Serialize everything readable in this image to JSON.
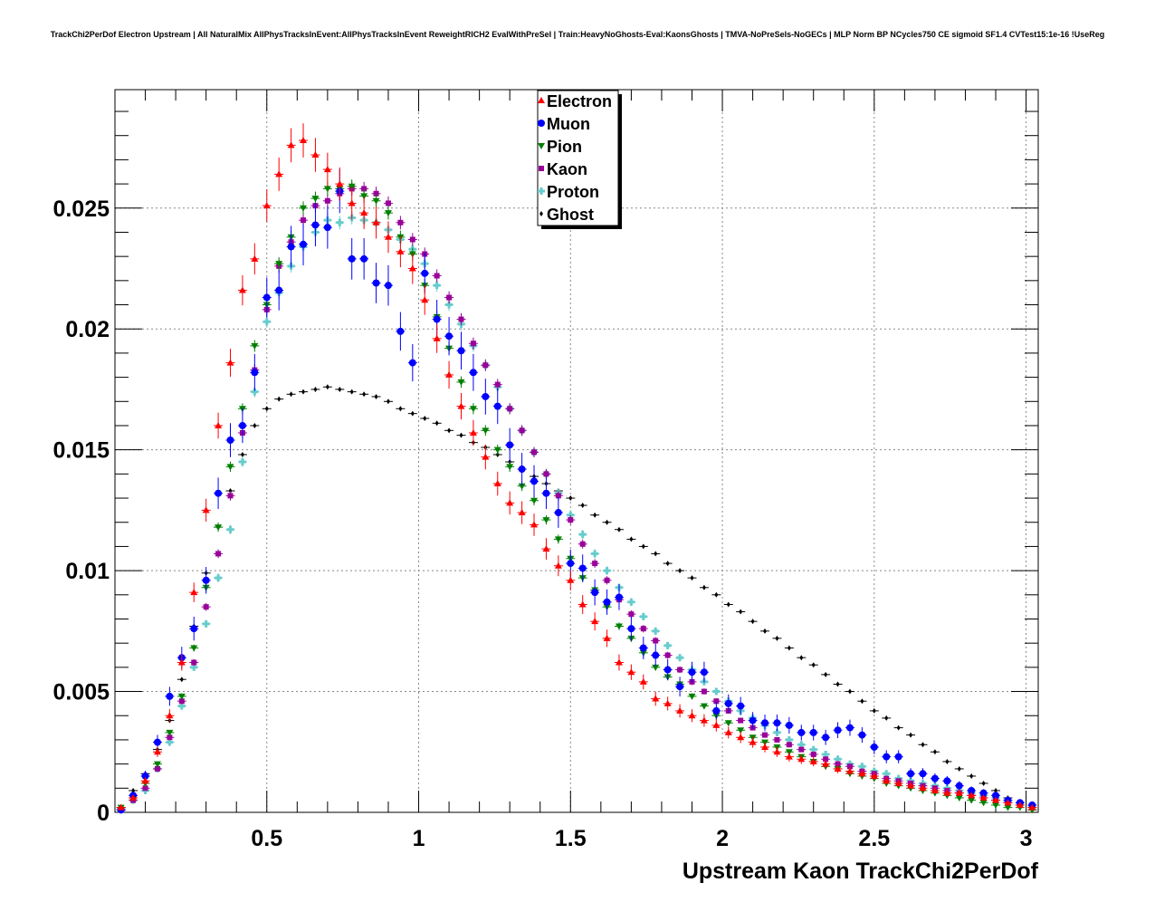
{
  "title": "TrackChi2PerDof Electron Upstream | All NaturalMix AllPhysTracksInEvent:AllPhysTracksInEvent ReweightRICH2 EvalWithPreSel | Train:HeavyNoGhosts-Eval:KaonsGhosts | TMVA-NoPreSels-NoGECs | MLP Norm BP NCycles750 CE sigmoid SF1.4 CVTest15:1e-16 !UseReg",
  "chart_data": {
    "type": "scatter",
    "title": "TrackChi2PerDof Electron Upstream | All NaturalMix AllPhysTracksInEvent:AllPhysTracksInEvent ReweightRICH2 EvalWithPreSel | Train:HeavyNoGhosts-Eval:KaonsGhosts | TMVA-NoPreSels-NoGECs | MLP Norm BP NCycles750 CE sigmoid SF1.4 CVTest15:1e-16 !UseReg",
    "xlabel": "Upstream Kaon TrackChi2PerDof",
    "ylabel": "",
    "xlim": [
      0,
      3.04
    ],
    "ylim": [
      0,
      0.0299
    ],
    "xticks": [
      "0.5",
      "1",
      "1.5",
      "2",
      "2.5",
      "3"
    ],
    "yticks": [
      "0",
      "0.005",
      "0.01",
      "0.015",
      "0.02",
      "0.025"
    ],
    "grid": true,
    "legend_position": "top-center",
    "x": [
      0.02,
      0.06,
      0.1,
      0.14,
      0.18,
      0.22,
      0.26,
      0.3,
      0.34,
      0.38,
      0.42,
      0.46,
      0.5,
      0.54,
      0.58,
      0.62,
      0.66,
      0.7,
      0.74,
      0.78,
      0.82,
      0.86,
      0.9,
      0.94,
      0.98,
      1.02,
      1.06,
      1.1,
      1.14,
      1.18,
      1.22,
      1.26,
      1.3,
      1.34,
      1.38,
      1.42,
      1.46,
      1.5,
      1.54,
      1.58,
      1.62,
      1.66,
      1.7,
      1.74,
      1.78,
      1.82,
      1.86,
      1.9,
      1.94,
      1.98,
      2.02,
      2.06,
      2.1,
      2.14,
      2.18,
      2.22,
      2.26,
      2.3,
      2.34,
      2.38,
      2.42,
      2.46,
      2.5,
      2.54,
      2.58,
      2.62,
      2.66,
      2.7,
      2.74,
      2.78,
      2.82,
      2.86,
      2.9,
      2.94,
      2.98,
      3.02
    ],
    "series": [
      {
        "name": "Electron",
        "marker": "triangle-up",
        "color": "#ff0000",
        "values": [
          0.0002,
          0.0006,
          0.0013,
          0.0025,
          0.004,
          0.0062,
          0.0091,
          0.0125,
          0.016,
          0.0186,
          0.0216,
          0.0229,
          0.0251,
          0.0264,
          0.0276,
          0.0278,
          0.0272,
          0.0266,
          0.026,
          0.0252,
          0.0248,
          0.0244,
          0.0238,
          0.0232,
          0.0225,
          0.0212,
          0.0196,
          0.0181,
          0.0168,
          0.0157,
          0.0147,
          0.0136,
          0.0128,
          0.0124,
          0.0119,
          0.0109,
          0.0102,
          0.0096,
          0.0086,
          0.0079,
          0.0072,
          0.0062,
          0.0058,
          0.0054,
          0.0047,
          0.0045,
          0.0042,
          0.004,
          0.0038,
          0.0036,
          0.0033,
          0.0031,
          0.0029,
          0.0027,
          0.0025,
          0.0023,
          0.0022,
          0.0021,
          0.002,
          0.0018,
          0.0017,
          0.0016,
          0.0015,
          0.0013,
          0.0012,
          0.0011,
          0.001,
          0.0009,
          0.0008,
          0.0008,
          0.0007,
          0.0006,
          0.0005,
          0.0004,
          0.0003,
          0.0002
        ]
      },
      {
        "name": "Muon",
        "marker": "circle",
        "color": "#0000ff",
        "values": [
          0.0001,
          0.0007,
          0.0015,
          0.0029,
          0.0048,
          0.0064,
          0.0076,
          0.0096,
          0.0132,
          0.0154,
          0.016,
          0.0182,
          0.0213,
          0.0216,
          0.0234,
          0.0235,
          0.0243,
          0.0242,
          0.0257,
          0.0229,
          0.0229,
          0.0219,
          0.0218,
          0.0199,
          0.0186,
          0.0223,
          0.0204,
          0.0197,
          0.0191,
          0.0182,
          0.0172,
          0.0168,
          0.0152,
          0.0142,
          0.0137,
          0.0132,
          0.0124,
          0.0103,
          0.0101,
          0.0091,
          0.0087,
          0.0089,
          0.0076,
          0.0068,
          0.0065,
          0.0059,
          0.0052,
          0.0058,
          0.0058,
          0.0042,
          0.0045,
          0.0044,
          0.0038,
          0.0037,
          0.0037,
          0.0036,
          0.0033,
          0.0033,
          0.0031,
          0.0034,
          0.0035,
          0.0032,
          0.0027,
          0.0023,
          0.0023,
          0.0016,
          0.0016,
          0.0014,
          0.0013,
          0.0011,
          0.0009,
          0.0008,
          0.0007,
          0.0005,
          0.0004,
          0.0003
        ]
      },
      {
        "name": "Pion",
        "marker": "triangle-down",
        "color": "#008000",
        "values": [
          0.0002,
          0.0006,
          0.0012,
          0.002,
          0.0033,
          0.0048,
          0.0068,
          0.0093,
          0.0118,
          0.0143,
          0.0167,
          0.0193,
          0.021,
          0.0227,
          0.0238,
          0.025,
          0.0254,
          0.0258,
          0.0258,
          0.0259,
          0.0255,
          0.0253,
          0.0248,
          0.0238,
          0.0231,
          0.0218,
          0.0205,
          0.0192,
          0.0178,
          0.0167,
          0.0158,
          0.015,
          0.0143,
          0.0135,
          0.0129,
          0.0121,
          0.0113,
          0.0105,
          0.0097,
          0.0092,
          0.0085,
          0.0077,
          0.0072,
          0.0066,
          0.006,
          0.0056,
          0.0053,
          0.0048,
          0.0044,
          0.004,
          0.0037,
          0.0034,
          0.0031,
          0.0029,
          0.0027,
          0.0025,
          0.0023,
          0.0021,
          0.0019,
          0.0018,
          0.0016,
          0.0015,
          0.0014,
          0.0012,
          0.0011,
          0.001,
          0.0009,
          0.0008,
          0.0007,
          0.0006,
          0.0005,
          0.0004,
          0.0003,
          0.0002,
          0.0002,
          0.0001
        ]
      },
      {
        "name": "Kaon",
        "marker": "square",
        "color": "#990099",
        "values": [
          0.0001,
          0.0005,
          0.001,
          0.0018,
          0.0031,
          0.0046,
          0.0062,
          0.0085,
          0.0107,
          0.0131,
          0.0157,
          0.0183,
          0.0208,
          0.0226,
          0.0236,
          0.0245,
          0.0251,
          0.0253,
          0.0256,
          0.0258,
          0.0258,
          0.0256,
          0.0252,
          0.0244,
          0.0237,
          0.0231,
          0.0222,
          0.0213,
          0.0204,
          0.0194,
          0.0185,
          0.0177,
          0.0167,
          0.0158,
          0.0149,
          0.014,
          0.0131,
          0.0121,
          0.0111,
          0.0103,
          0.0096,
          0.0088,
          0.0082,
          0.0076,
          0.0071,
          0.0065,
          0.0059,
          0.0054,
          0.005,
          0.0046,
          0.0042,
          0.0038,
          0.0035,
          0.0032,
          0.003,
          0.0028,
          0.0026,
          0.0024,
          0.0022,
          0.002,
          0.0019,
          0.0017,
          0.0016,
          0.0014,
          0.0013,
          0.0012,
          0.0011,
          0.001,
          0.0009,
          0.0008,
          0.0007,
          0.0006,
          0.0005,
          0.0004,
          0.0003,
          0.0002
        ]
      },
      {
        "name": "Proton",
        "marker": "cross",
        "color": "#66cccc",
        "values": [
          0.0001,
          0.0005,
          0.0009,
          0.0018,
          0.0029,
          0.0044,
          0.006,
          0.0078,
          0.0097,
          0.0117,
          0.0145,
          0.0174,
          0.0203,
          0.0215,
          0.0226,
          0.0234,
          0.024,
          0.0245,
          0.0244,
          0.0246,
          0.0245,
          0.0244,
          0.0241,
          0.0237,
          0.0233,
          0.0227,
          0.0218,
          0.021,
          0.0202,
          0.0193,
          0.0185,
          0.0176,
          0.0167,
          0.0158,
          0.0149,
          0.014,
          0.0132,
          0.0123,
          0.0115,
          0.0107,
          0.01,
          0.0093,
          0.0087,
          0.0081,
          0.0075,
          0.0069,
          0.0064,
          0.0059,
          0.0054,
          0.005,
          0.0046,
          0.0042,
          0.0039,
          0.0036,
          0.0033,
          0.003,
          0.0028,
          0.0026,
          0.0024,
          0.0022,
          0.002,
          0.0019,
          0.0017,
          0.0016,
          0.0014,
          0.0013,
          0.0012,
          0.0011,
          0.001,
          0.0009,
          0.0008,
          0.0007,
          0.0006,
          0.0005,
          0.0004,
          0.0003
        ]
      },
      {
        "name": "Ghost",
        "marker": "diamond",
        "color": "#000000",
        "values": [
          0.0002,
          0.0009,
          0.0016,
          0.0026,
          0.0038,
          0.0055,
          0.0077,
          0.0099,
          0.0118,
          0.0133,
          0.0148,
          0.016,
          0.0167,
          0.0171,
          0.0173,
          0.0174,
          0.0175,
          0.0176,
          0.0175,
          0.0174,
          0.0173,
          0.0172,
          0.017,
          0.0167,
          0.0165,
          0.0163,
          0.0161,
          0.0158,
          0.0156,
          0.0153,
          0.0151,
          0.0148,
          0.0145,
          0.0142,
          0.0139,
          0.0136,
          0.0133,
          0.013,
          0.0127,
          0.0123,
          0.012,
          0.0117,
          0.0113,
          0.011,
          0.0107,
          0.0103,
          0.01,
          0.0097,
          0.0093,
          0.009,
          0.0086,
          0.0083,
          0.0079,
          0.0075,
          0.0072,
          0.0068,
          0.0064,
          0.0061,
          0.0057,
          0.0053,
          0.005,
          0.0046,
          0.0042,
          0.0039,
          0.0035,
          0.0032,
          0.0028,
          0.0025,
          0.0021,
          0.0018,
          0.0015,
          0.0012,
          0.0009,
          0.0006,
          0.0003,
          0.0001
        ]
      }
    ]
  }
}
